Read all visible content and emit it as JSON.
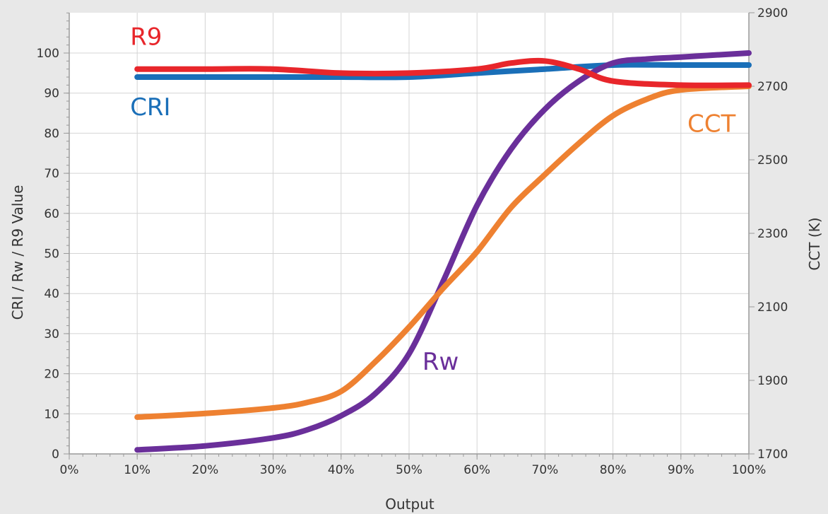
{
  "chart_data": {
    "type": "line",
    "title": "",
    "xlabel": "Output",
    "ylabel": "CRI / Rw / R9 Value",
    "y2label": "CCT (K)",
    "background": "#e8e8e8",
    "grid": true,
    "xlim": [
      0,
      100
    ],
    "ylim": [
      0,
      110
    ],
    "y2lim": [
      1700,
      2900
    ],
    "x_ticks": [
      0,
      10,
      20,
      30,
      40,
      50,
      60,
      70,
      80,
      90,
      100
    ],
    "x_tick_labels": [
      "0%",
      "10%",
      "20%",
      "30%",
      "40%",
      "50%",
      "60%",
      "70%",
      "80%",
      "90%",
      "100%"
    ],
    "y_ticks": [
      0,
      10,
      20,
      30,
      40,
      50,
      60,
      70,
      80,
      90,
      100
    ],
    "y_tick_labels": [
      "0",
      "10",
      "20",
      "30",
      "40",
      "50",
      "60",
      "70",
      "80",
      "90",
      "100"
    ],
    "y2_ticks": [
      1700,
      1900,
      2100,
      2300,
      2500,
      2700,
      2900
    ],
    "y2_tick_labels": [
      "1700",
      "1900",
      "2100",
      "2300",
      "2500",
      "2700",
      "2900"
    ],
    "series": [
      {
        "name": "R9",
        "color": "#e8262b",
        "axis": "left",
        "x": [
          10,
          20,
          30,
          40,
          50,
          60,
          65,
          70,
          75,
          80,
          90,
          100
        ],
        "y": [
          96,
          96,
          96,
          95,
          95,
          96,
          97.5,
          98,
          96,
          93,
          92,
          92
        ]
      },
      {
        "name": "CRI",
        "color": "#1a6fb8",
        "axis": "left",
        "x": [
          10,
          20,
          30,
          40,
          50,
          60,
          70,
          80,
          90,
          100
        ],
        "y": [
          94,
          94,
          94,
          94,
          94,
          95,
          96,
          97,
          97,
          97
        ]
      },
      {
        "name": "Rw",
        "color": "#6a2f9a",
        "axis": "left",
        "x": [
          10,
          20,
          30,
          35,
          40,
          45,
          50,
          55,
          60,
          65,
          70,
          75,
          80,
          85,
          90,
          100
        ],
        "y": [
          1,
          2,
          4,
          6,
          9.5,
          15,
          25,
          43,
          62,
          76,
          86,
          93,
          97.5,
          98.5,
          99,
          100
        ]
      },
      {
        "name": "CCT",
        "color": "#ee8131",
        "axis": "right",
        "x": [
          10,
          20,
          30,
          35,
          40,
          45,
          50,
          55,
          60,
          65,
          70,
          75,
          80,
          85,
          90,
          100
        ],
        "y": [
          1800,
          1810,
          1825,
          1840,
          1870,
          1950,
          2045,
          2150,
          2250,
          2370,
          2460,
          2545,
          2620,
          2665,
          2690,
          2700
        ]
      }
    ],
    "labels": [
      {
        "text": "R9",
        "color": "#e8262b",
        "x": 10,
        "y": 102,
        "axis": "left"
      },
      {
        "text": "CRI",
        "color": "#1a6fb8",
        "x": 10,
        "y": 84.5,
        "axis": "left"
      },
      {
        "text": "Rw",
        "color": "#6a2f9a",
        "x": 53,
        "y": 21,
        "axis": "left"
      },
      {
        "text": "CCT",
        "color": "#ee8131",
        "x": 92,
        "y": 80.3,
        "axis": "left"
      }
    ]
  }
}
